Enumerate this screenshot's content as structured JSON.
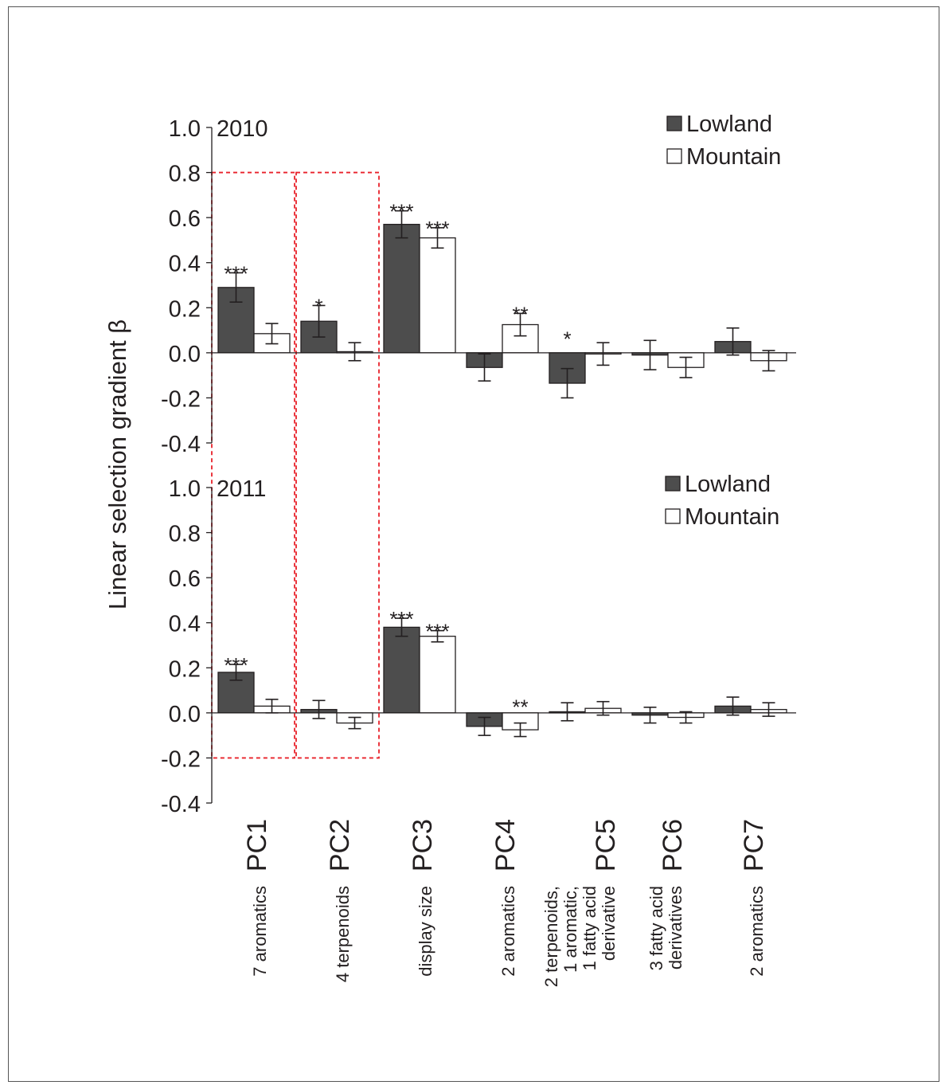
{
  "chart_data": [
    {
      "type": "bar",
      "panel_label": "2010",
      "ylabel": "Linear selection gradient β",
      "ylim": [
        -0.4,
        1.0
      ],
      "yticks": [
        "1.0",
        "0.8",
        "0.6",
        "0.4",
        "0.2",
        "0.0",
        "-0.2",
        "-0.4"
      ],
      "legend": [
        "Lowland",
        "Mountain"
      ],
      "legend_position": "top-right",
      "categories": [
        "PC1",
        "PC2",
        "PC3",
        "PC4",
        "PC5",
        "PC6",
        "PC7"
      ],
      "series": [
        {
          "name": "Lowland",
          "color": "#4d4d4d",
          "values": [
            0.29,
            0.14,
            0.57,
            -0.065,
            -0.135,
            -0.01,
            0.05
          ],
          "errors": [
            0.065,
            0.07,
            0.06,
            0.06,
            0.065,
            0.065,
            0.06
          ],
          "significance": [
            "***",
            "*",
            "***",
            "",
            "*",
            "",
            ""
          ]
        },
        {
          "name": "Mountain",
          "color": "#ffffff",
          "values": [
            0.085,
            0.005,
            0.51,
            0.125,
            -0.005,
            -0.065,
            -0.035
          ],
          "errors": [
            0.045,
            0.04,
            0.045,
            0.05,
            0.05,
            0.045,
            0.045
          ],
          "significance": [
            "",
            "",
            "***",
            "**",
            "",
            "",
            ""
          ]
        }
      ]
    },
    {
      "type": "bar",
      "panel_label": "2011",
      "ylim": [
        -0.4,
        1.0
      ],
      "yticks": [
        "1.0",
        "0.8",
        "0.6",
        "0.4",
        "0.2",
        "0.0",
        "-0.2",
        "-0.4"
      ],
      "legend": [
        "Lowland",
        "Mountain"
      ],
      "legend_position": "top-right",
      "categories": [
        "PC1",
        "PC2",
        "PC3",
        "PC4",
        "PC5",
        "PC6",
        "PC7"
      ],
      "category_descriptions": [
        [
          "7 aromatics"
        ],
        [
          "4 terpenoids"
        ],
        [
          "display size"
        ],
        [
          "2 aromatics"
        ],
        [
          "2 terpenoids,",
          "1 aromatic,",
          "1 fatty acid",
          "derivative"
        ],
        [
          "3 fatty acid",
          "derivatives"
        ],
        [
          "2 aromatics"
        ]
      ],
      "series": [
        {
          "name": "Lowland",
          "color": "#4d4d4d",
          "values": [
            0.18,
            0.015,
            0.38,
            -0.06,
            0.005,
            -0.01,
            0.03
          ],
          "errors": [
            0.035,
            0.04,
            0.04,
            0.04,
            0.04,
            0.035,
            0.04
          ],
          "significance": [
            "***",
            "",
            "***",
            "",
            "",
            "",
            ""
          ]
        },
        {
          "name": "Mountain",
          "color": "#ffffff",
          "values": [
            0.03,
            -0.045,
            0.34,
            -0.075,
            0.02,
            -0.02,
            0.015
          ],
          "errors": [
            0.03,
            0.025,
            0.025,
            0.03,
            0.03,
            0.025,
            0.03
          ],
          "significance": [
            "",
            "",
            "***",
            "**",
            "",
            "",
            ""
          ]
        }
      ],
      "highlight_boxes": [
        {
          "categories": [
            "PC1"
          ],
          "y_range": [
            -0.2,
            0.8
          ],
          "color": "#e8212a",
          "style": "dashed"
        },
        {
          "categories": [
            "PC2"
          ],
          "y_range": [
            -0.2,
            0.8
          ],
          "color": "#e8212a",
          "style": "dashed"
        }
      ]
    }
  ]
}
